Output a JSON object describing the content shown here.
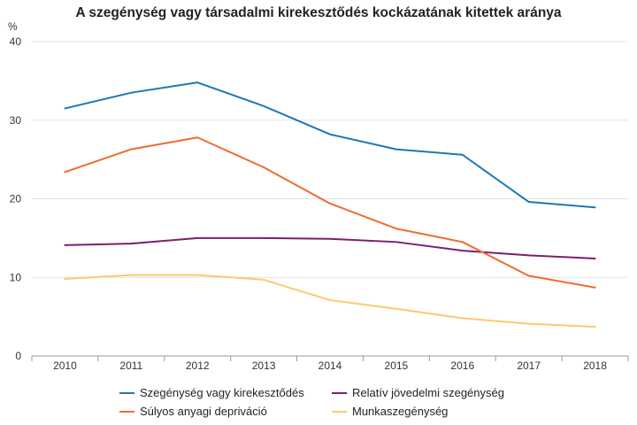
{
  "chart_data": {
    "type": "line",
    "title": "A szegénység vagy társadalmi kirekesztődés kockázatának kitettek aránya",
    "ylabel": "%",
    "xlabel": "",
    "categories": [
      "2010",
      "2011",
      "2012",
      "2013",
      "2014",
      "2015",
      "2016",
      "2017",
      "2018"
    ],
    "ylim": [
      0,
      40
    ],
    "yticks": [
      0,
      10,
      20,
      30,
      40
    ],
    "grid": true,
    "legend_position": "bottom",
    "series": [
      {
        "name": "Szegénység vagy kirekesztődés",
        "color": "#1f77b4",
        "values": [
          31.5,
          33.5,
          34.8,
          31.8,
          28.2,
          26.3,
          25.6,
          19.6,
          18.9
        ]
      },
      {
        "name": "Súlyos anyagi depriváció",
        "color": "#ef6c2e",
        "values": [
          23.4,
          26.3,
          27.8,
          24.0,
          19.4,
          16.2,
          14.5,
          10.2,
          8.7
        ]
      },
      {
        "name": "Relatív jövedelmi szegénység",
        "color": "#7b1f6e",
        "values": [
          14.1,
          14.3,
          15.0,
          15.0,
          14.9,
          14.5,
          13.4,
          12.8,
          12.4
        ]
      },
      {
        "name": "Munkaszegénység",
        "color": "#ffc86e",
        "values": [
          9.8,
          10.3,
          10.3,
          9.7,
          7.1,
          6.0,
          4.8,
          4.1,
          3.7
        ]
      }
    ]
  }
}
